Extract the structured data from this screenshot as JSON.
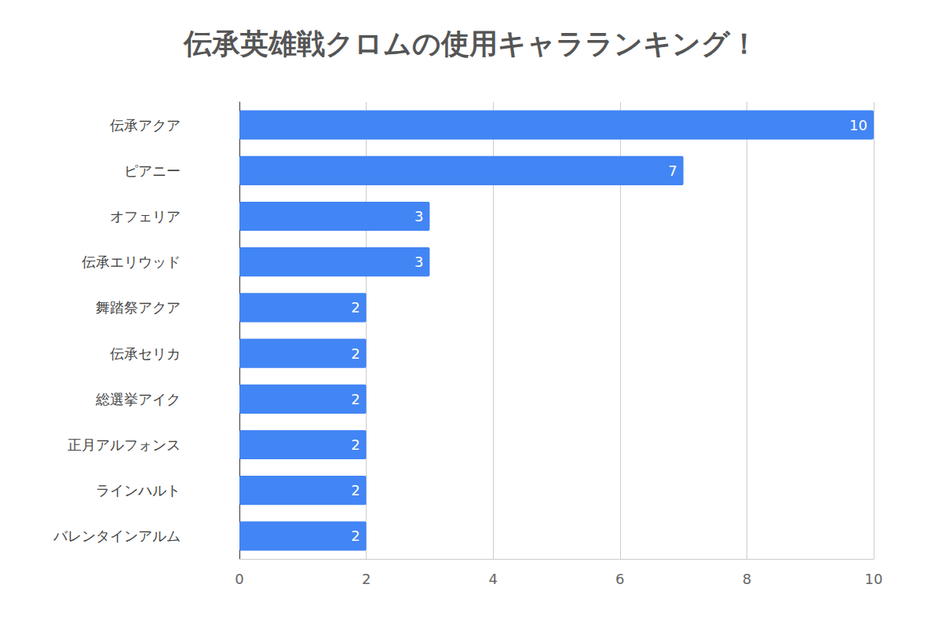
{
  "chart_data": {
    "type": "bar",
    "title": "伝承英雄戦クロムの使用キャラランキング！",
    "orientation": "horizontal",
    "categories": [
      "伝承アクア",
      "ピアニー",
      "オフェリア",
      "伝承エリウッド",
      "舞踏祭アクア",
      "伝承セリカ",
      "総選挙アイク",
      "正月アルフォンス",
      "ラインハルト",
      "バレンタインアルム"
    ],
    "values": [
      10,
      7,
      3,
      3,
      2,
      2,
      2,
      2,
      2,
      2
    ],
    "color": "#4285f4",
    "xlim": [
      0,
      10
    ],
    "xticks": [
      0,
      2,
      4,
      6,
      8,
      10
    ],
    "grid": true,
    "data_labels": true
  }
}
